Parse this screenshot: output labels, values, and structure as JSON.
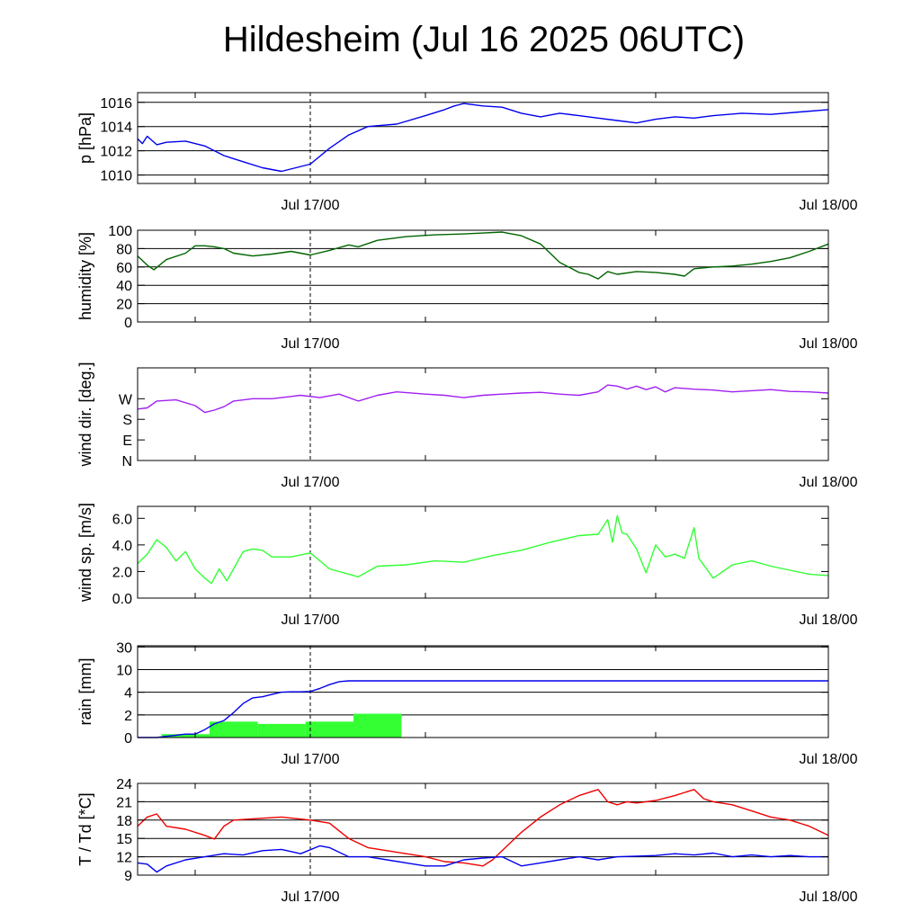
{
  "title": "Hildesheim (Jul 16 2025 06UTC)",
  "x_axis": {
    "start": "Jul 16 06UTC",
    "end": "Jul 18 00UTC",
    "minor_ticks": [
      "Jul 16 12UTC",
      "Jul 17 12UTC"
    ],
    "tick_labels": [
      "Jul 17/00",
      "Jul 18/00"
    ],
    "marker": "Jul 17/00"
  },
  "colors": {
    "pressure": "#0000ee",
    "humidity": "#006400",
    "wind_dir": "#a020f0",
    "wind_speed": "#33ff33",
    "rain_bars": "#33ff33",
    "rain_sum": "#0000ee",
    "temperature": "#ee0000",
    "dewpoint": "#0000ee"
  },
  "chart_data": [
    {
      "type": "line",
      "ylabel": "p [hPa]",
      "ylim": [
        1009.3,
        1016.8
      ],
      "yticks": [
        1010,
        1012,
        1014,
        1016
      ],
      "ytick_labels": [
        "1010",
        "1012",
        "1014",
        "1016"
      ],
      "gridlines": [
        1010,
        1012,
        1014,
        1016
      ],
      "series": [
        {
          "x_hours": [
            0,
            0.5,
            1,
            2,
            3,
            5,
            7,
            9,
            11,
            13,
            15,
            18,
            20,
            22,
            24,
            27,
            30,
            32,
            33,
            34,
            36,
            38,
            40,
            42,
            44,
            46,
            48,
            50,
            52,
            54,
            56,
            58,
            60,
            63,
            66,
            69,
            72
          ],
          "values": [
            1013,
            1012.6,
            1013.2,
            1012.5,
            1012.7,
            1012.8,
            1012.4,
            1011.6,
            1011.1,
            1010.6,
            1010.3,
            1010.9,
            1012.2,
            1013.3,
            1014,
            1014.2,
            1014.9,
            1015.4,
            1015.7,
            1015.9,
            1015.7,
            1015.6,
            1015.1,
            1014.8,
            1015.1,
            1014.9,
            1014.7,
            1014.5,
            1014.3,
            1014.6,
            1014.8,
            1014.7,
            1014.9,
            1015.1,
            1015,
            1015.2,
            1015.4
          ]
        }
      ]
    },
    {
      "type": "line",
      "ylabel": "humidity [%]",
      "ylim": [
        0,
        100
      ],
      "yticks": [
        0,
        20,
        40,
        60,
        80,
        100
      ],
      "ytick_labels": [
        "0",
        "20",
        "40",
        "60",
        "80",
        "100"
      ],
      "gridlines": [
        20,
        40,
        60,
        80,
        100
      ],
      "series": [
        {
          "x_hours": [
            0,
            1,
            1.7,
            3,
            5,
            6,
            7,
            8,
            9,
            10,
            12,
            14,
            16,
            18,
            20,
            22,
            23,
            25,
            28,
            31,
            34,
            36,
            38,
            40,
            42,
            44,
            46,
            47,
            48,
            49,
            50,
            52,
            54,
            56,
            57,
            58,
            60,
            62,
            64,
            66,
            68,
            70,
            72
          ],
          "values": [
            72,
            62,
            57,
            68,
            75,
            83,
            83,
            82,
            80,
            75,
            72,
            74,
            77,
            73,
            78,
            84,
            82,
            89,
            93,
            95,
            96,
            97,
            98,
            94,
            85,
            65,
            54,
            52,
            47,
            55,
            52,
            55,
            54,
            52,
            50,
            58,
            60,
            61,
            63,
            66,
            70,
            77,
            85
          ]
        }
      ]
    },
    {
      "type": "line",
      "ylabel": "wind dir. [deg.]",
      "ylim": [
        0,
        405
      ],
      "yticks": [
        0,
        90,
        180,
        270
      ],
      "ytick_labels": [
        "N",
        "E",
        "S",
        "W"
      ],
      "gridlines": [],
      "series": [
        {
          "x_hours": [
            0,
            1,
            2,
            4,
            6,
            7,
            8,
            9,
            10,
            12,
            14,
            16,
            17,
            19,
            21,
            23,
            25,
            27,
            30,
            32,
            34,
            36,
            38,
            40,
            42,
            44,
            46,
            48,
            49,
            50,
            51,
            52,
            53,
            54,
            55,
            56,
            58,
            60,
            62,
            64,
            66,
            68,
            70,
            72
          ],
          "values": [
            225,
            230,
            260,
            265,
            240,
            210,
            220,
            235,
            260,
            270,
            270,
            280,
            285,
            275,
            290,
            260,
            285,
            300,
            290,
            285,
            275,
            285,
            290,
            295,
            298,
            290,
            285,
            300,
            330,
            325,
            312,
            325,
            310,
            322,
            300,
            318,
            312,
            308,
            300,
            305,
            310,
            302,
            300,
            295
          ]
        }
      ]
    },
    {
      "type": "line",
      "ylabel": "wind sp. [m/s]",
      "ylim": [
        0,
        6.9
      ],
      "yticks": [
        0,
        2,
        4,
        6
      ],
      "ytick_labels": [
        "0.0",
        "2.0",
        "4.0",
        "6.0"
      ],
      "gridlines": [],
      "series": [
        {
          "x_hours": [
            0,
            1,
            2,
            3,
            4,
            5,
            6,
            7,
            7.7,
            8.5,
            9.3,
            10,
            11,
            12,
            13,
            14,
            16,
            18,
            20,
            22,
            23,
            25,
            28,
            31,
            34,
            37,
            40,
            43,
            46,
            48,
            49,
            49.5,
            50,
            50.5,
            51,
            52,
            53,
            54,
            55,
            56,
            57,
            58,
            58.5,
            60,
            62,
            64,
            66,
            68,
            70,
            72
          ],
          "values": [
            2.6,
            3.3,
            4.4,
            3.8,
            2.8,
            3.5,
            2.2,
            1.5,
            1.1,
            2.2,
            1.3,
            2.2,
            3.5,
            3.7,
            3.6,
            3.1,
            3.1,
            3.4,
            2.2,
            1.8,
            1.6,
            2.4,
            2.5,
            2.8,
            2.7,
            3.2,
            3.6,
            4.2,
            4.7,
            4.8,
            5.9,
            4.2,
            6.2,
            4.9,
            4.8,
            3.7,
            1.9,
            4.0,
            3.1,
            3.3,
            3.0,
            5.3,
            3.0,
            1.5,
            2.5,
            2.8,
            2.4,
            2.1,
            1.8,
            1.7
          ]
        }
      ]
    },
    {
      "type": "bar",
      "ylabel": "rain [mm]",
      "ylim": [
        0,
        31
      ],
      "yticks": [
        0,
        2,
        4,
        10,
        30
      ],
      "ytick_labels": [
        "0",
        "2",
        "4",
        "10",
        "30"
      ],
      "gridlines": [
        2,
        4,
        10,
        30
      ],
      "bars": {
        "x_start_hours": [
          2.5,
          7.5,
          12.5,
          17.5,
          22.5
        ],
        "x_end_hours": [
          7.5,
          12.5,
          17.5,
          22.5,
          27.5
        ],
        "values": [
          0.3,
          1.4,
          1.2,
          1.4,
          2.1
        ]
      },
      "series": [
        {
          "x_hours": [
            0,
            2,
            3,
            4,
            5,
            6,
            7,
            8,
            9,
            10,
            11,
            12,
            13,
            14,
            15,
            16,
            17,
            18,
            19,
            20,
            21,
            22,
            23,
            24,
            36,
            48,
            60,
            72
          ],
          "values": [
            0,
            0,
            0.1,
            0.2,
            0.3,
            0.3,
            0.7,
            1.2,
            1.5,
            2.2,
            3.0,
            3.5,
            3.6,
            3.8,
            4.0,
            4.1,
            4.1,
            4.2,
            5.0,
            6.0,
            6.8,
            7.0,
            7.0,
            7.0,
            7.0,
            7.0,
            7.0,
            7.0
          ]
        }
      ]
    },
    {
      "type": "line",
      "ylabel": "T / Td [*C]",
      "ylim": [
        9,
        24
      ],
      "yticks": [
        9,
        12,
        15,
        18,
        21,
        24
      ],
      "ytick_labels": [
        "9",
        "12",
        "15",
        "18",
        "21",
        "24"
      ],
      "gridlines": [
        12,
        15,
        18,
        21
      ],
      "series": [
        {
          "name": "T",
          "x_hours": [
            0,
            1,
            2,
            3,
            5,
            7,
            8,
            9,
            10,
            12,
            15,
            18,
            20,
            22,
            24,
            26,
            28,
            30,
            32,
            34,
            36,
            37,
            38,
            40,
            42,
            44,
            46,
            48,
            49,
            50,
            51,
            52,
            54,
            56,
            58,
            59,
            60,
            62,
            64,
            66,
            68,
            70,
            72
          ],
          "values": [
            17.0,
            18.5,
            19.0,
            17.0,
            16.5,
            15.5,
            14.9,
            17.0,
            18.0,
            18.2,
            18.5,
            18.0,
            17.5,
            15.0,
            13.5,
            13.0,
            12.5,
            12.0,
            11.2,
            11.0,
            10.5,
            11.5,
            13.0,
            16.0,
            18.5,
            20.5,
            22.0,
            23.0,
            21.0,
            20.5,
            21.0,
            20.8,
            21.2,
            22.0,
            23.0,
            21.5,
            21.0,
            20.5,
            19.5,
            18.5,
            18.0,
            17.0,
            15.5
          ]
        },
        {
          "name": "Td",
          "x_hours": [
            0,
            1,
            2,
            3,
            5,
            7,
            9,
            11,
            13,
            15,
            17,
            19,
            20,
            22,
            24,
            26,
            28,
            30,
            32,
            34,
            36,
            38,
            40,
            42,
            44,
            46,
            48,
            50,
            52,
            54,
            56,
            58,
            60,
            62,
            64,
            66,
            68,
            70,
            72
          ],
          "values": [
            11.0,
            10.8,
            9.5,
            10.5,
            11.5,
            12.0,
            12.5,
            12.3,
            13.0,
            13.2,
            12.5,
            13.8,
            13.5,
            12.0,
            12.0,
            11.5,
            11.0,
            10.5,
            10.5,
            11.5,
            11.8,
            12.0,
            10.5,
            11.0,
            11.5,
            12.0,
            11.5,
            12.0,
            12.1,
            12.2,
            12.5,
            12.3,
            12.6,
            12.0,
            12.3,
            12.0,
            12.2,
            12.0,
            12.0
          ]
        }
      ]
    }
  ]
}
